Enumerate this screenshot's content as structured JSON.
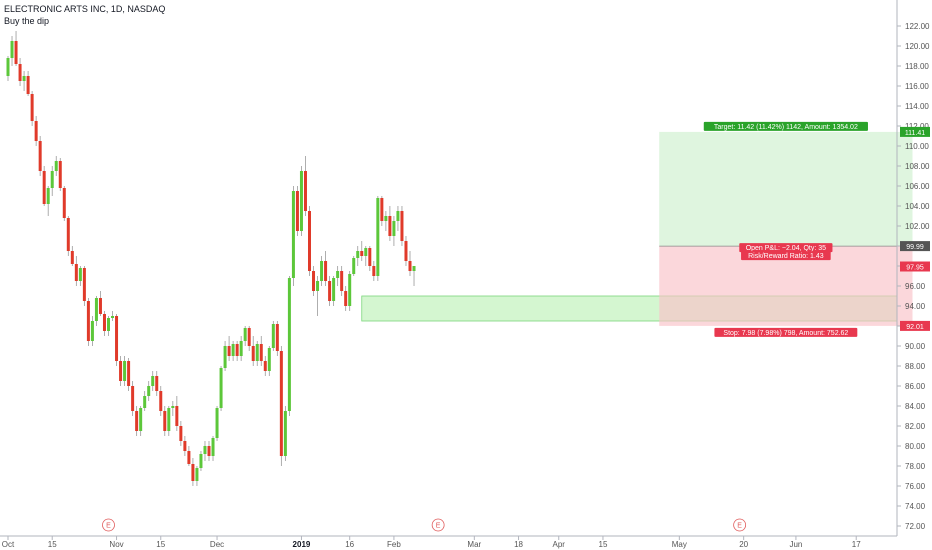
{
  "header": {
    "title": "ELECTRONIC ARTS INC, 1D, NASDAQ",
    "subtitle": "Buy the dip"
  },
  "chart_data": {
    "type": "candlestick",
    "ylim": [
      71,
      123
    ],
    "y_ticks": [
      72,
      74,
      76,
      78,
      80,
      82,
      84,
      86,
      88,
      90,
      92,
      94,
      96,
      98,
      100,
      102,
      104,
      106,
      108,
      110,
      112,
      114,
      116,
      118,
      120,
      122
    ],
    "y_tick_labels": [
      "72.00",
      "74.00",
      "76.00",
      "78.00",
      "80.00",
      "82.00",
      "84.00",
      "86.00",
      "88.00",
      "90.00",
      "92.00",
      "94.00",
      "96.00",
      "98.00",
      "100.00",
      "102.00",
      "104.00",
      "106.00",
      "108.00",
      "110.00",
      "112.00",
      "114.00",
      "116.00",
      "118.00",
      "120.00",
      "122.00"
    ],
    "x_ticks": [
      {
        "label": "Oct",
        "bold": false
      },
      {
        "label": "15",
        "bold": false
      },
      {
        "label": "Nov",
        "bold": false
      },
      {
        "label": "15",
        "bold": false
      },
      {
        "label": "Dec",
        "bold": false
      },
      {
        "label": "2019",
        "bold": true
      },
      {
        "label": "16",
        "bold": false
      },
      {
        "label": "Feb",
        "bold": false
      },
      {
        "label": "Mar",
        "bold": false
      },
      {
        "label": "18",
        "bold": false
      },
      {
        "label": "Apr",
        "bold": false
      },
      {
        "label": "15",
        "bold": false
      },
      {
        "label": "May",
        "bold": false
      },
      {
        "label": "20",
        "bold": false
      },
      {
        "label": "Jun",
        "bold": false
      },
      {
        "label": "17",
        "bold": false
      }
    ],
    "x_tick_index": [
      0,
      11,
      27,
      38,
      52,
      73,
      85,
      96,
      116,
      127,
      137,
      148,
      167,
      183,
      196,
      211
    ],
    "colors": {
      "up": "#5cc73a",
      "down": "#e03a2a",
      "target": "#2aa32a",
      "stop": "#e8384f",
      "price": "#e8384f",
      "last": "#555555",
      "zone": "#b8f0b0"
    },
    "candles": [
      [
        117,
        119,
        116.5,
        118.8
      ],
      [
        118.8,
        121,
        118,
        120.5
      ],
      [
        120.5,
        121.5,
        118,
        118.2
      ],
      [
        118.2,
        118.8,
        116,
        116.5
      ],
      [
        116.5,
        117.5,
        115.5,
        117
      ],
      [
        117,
        117.5,
        115,
        115.2
      ],
      [
        115.2,
        115.5,
        112,
        112.5
      ],
      [
        112.5,
        113,
        110,
        110.5
      ],
      [
        110.5,
        111,
        107,
        107.5
      ],
      [
        107.5,
        108,
        104,
        104.2
      ],
      [
        104.2,
        106,
        103,
        105.8
      ],
      [
        105.8,
        108,
        105,
        107.5
      ],
      [
        107.5,
        109,
        107,
        108.5
      ],
      [
        108.5,
        108.8,
        105.5,
        105.8
      ],
      [
        105.8,
        106,
        102.5,
        102.8
      ],
      [
        102.8,
        103,
        99,
        99.5
      ],
      [
        99.5,
        100,
        98,
        98.2
      ],
      [
        98.2,
        99,
        96,
        96.5
      ],
      [
        96.5,
        98,
        96,
        97.8
      ],
      [
        97.8,
        98,
        94,
        94.5
      ],
      [
        94.5,
        94.8,
        90,
        90.5
      ],
      [
        90.5,
        93,
        90,
        92.5
      ],
      [
        92.5,
        95,
        92,
        94.8
      ],
      [
        94.8,
        95.5,
        93,
        93.2
      ],
      [
        93.2,
        93.5,
        91,
        91.5
      ],
      [
        91.5,
        93,
        91,
        92.8
      ],
      [
        92.8,
        93.5,
        92.5,
        93
      ],
      [
        93,
        93.2,
        88,
        88.5
      ],
      [
        88.5,
        89,
        86,
        86.5
      ],
      [
        86.5,
        89,
        86,
        88.5
      ],
      [
        88.5,
        88.8,
        85.5,
        86
      ],
      [
        86,
        86.5,
        83,
        83.5
      ],
      [
        83.5,
        84,
        81,
        81.5
      ],
      [
        81.5,
        84,
        81,
        83.8
      ],
      [
        83.8,
        85.5,
        83.5,
        85
      ],
      [
        85,
        86.5,
        84.5,
        86
      ],
      [
        86,
        87.5,
        85.5,
        87
      ],
      [
        87,
        87.5,
        85,
        85.5
      ],
      [
        85.5,
        86,
        83,
        83.5
      ],
      [
        83.5,
        84,
        81,
        81.5
      ],
      [
        81.5,
        84,
        81,
        83.8
      ],
      [
        83.8,
        84.5,
        83,
        84
      ],
      [
        84,
        85,
        81.5,
        82
      ],
      [
        82,
        82.5,
        80,
        80.5
      ],
      [
        80.5,
        81,
        79,
        79.5
      ],
      [
        79.5,
        80,
        78,
        78.2
      ],
      [
        78.2,
        78.8,
        76,
        76.5
      ],
      [
        76.5,
        78,
        76,
        77.8
      ],
      [
        77.8,
        79.5,
        77.5,
        79.2
      ],
      [
        79.2,
        80.5,
        78.5,
        80
      ],
      [
        80,
        80.5,
        78.5,
        79
      ],
      [
        79,
        81,
        78.5,
        80.8
      ],
      [
        80.8,
        84,
        80.5,
        83.8
      ],
      [
        83.8,
        88,
        83.5,
        87.8
      ],
      [
        87.8,
        90.5,
        87.5,
        90
      ],
      [
        90,
        91,
        88.5,
        89
      ],
      [
        89,
        90.5,
        88.5,
        90.2
      ],
      [
        90.2,
        90.5,
        88.5,
        89
      ],
      [
        89,
        91,
        88.5,
        90.5
      ],
      [
        90.5,
        92,
        90,
        91.8
      ],
      [
        91.8,
        92,
        89.5,
        90
      ],
      [
        90,
        91,
        88,
        88.5
      ],
      [
        88.5,
        90.5,
        88,
        90.2
      ],
      [
        90.2,
        91,
        88,
        88.5
      ],
      [
        88.5,
        89,
        87,
        87.5
      ],
      [
        87.5,
        90,
        87,
        89.8
      ],
      [
        89.8,
        92.5,
        89.5,
        92.2
      ],
      [
        92.2,
        92.5,
        89,
        89.5
      ],
      [
        89.5,
        90,
        78,
        79
      ],
      [
        79,
        84,
        78.5,
        83.5
      ],
      [
        83.5,
        97,
        83,
        96.8
      ],
      [
        96.8,
        106,
        96,
        105.5
      ],
      [
        105.5,
        106,
        101,
        101.5
      ],
      [
        101.5,
        108,
        101,
        107.5
      ],
      [
        107.5,
        109,
        103,
        103.5
      ],
      [
        103.5,
        104,
        97,
        97.5
      ],
      [
        97.5,
        98,
        95,
        95.5
      ],
      [
        95.5,
        97,
        93,
        96.5
      ],
      [
        96.5,
        99,
        96,
        98.5
      ],
      [
        98.5,
        99.5,
        96,
        96.5
      ],
      [
        96.5,
        97,
        94,
        94.5
      ],
      [
        94.5,
        97,
        94,
        96.8
      ],
      [
        96.8,
        98,
        96,
        97.5
      ],
      [
        97.5,
        98,
        95,
        95.5
      ],
      [
        95.5,
        96,
        93.5,
        94
      ],
      [
        94,
        97.5,
        93.5,
        97.2
      ],
      [
        97.2,
        99,
        97,
        98.8
      ],
      [
        98.8,
        100,
        98,
        99.5
      ],
      [
        99.5,
        100.5,
        98.5,
        99
      ],
      [
        99,
        100,
        98,
        99.8
      ],
      [
        99.8,
        100,
        97.5,
        98
      ],
      [
        98,
        98.5,
        96.5,
        97
      ],
      [
        97,
        105,
        96.5,
        104.8
      ],
      [
        104.8,
        105,
        102,
        102.5
      ],
      [
        102.5,
        103.5,
        101.5,
        103
      ],
      [
        103,
        104,
        100.5,
        101
      ],
      [
        101,
        103,
        100,
        102.5
      ],
      [
        102.5,
        104,
        101.5,
        103.5
      ],
      [
        103.5,
        104,
        100,
        100.5
      ],
      [
        100.5,
        101,
        98,
        98.5
      ],
      [
        98.5,
        99.5,
        97,
        97.5
      ],
      [
        97.5,
        98,
        96,
        98
      ]
    ],
    "zone": {
      "y_low": 92.5,
      "y_high": 95,
      "i_start": 88,
      "i_end": 228
    },
    "position": {
      "i_start": 162,
      "i_end": 225,
      "entry": 99.99,
      "target": 111.41,
      "stop": 92.01
    },
    "price_labels": [
      {
        "value": 111.41,
        "text": "111.41",
        "kind": "target"
      },
      {
        "value": 99.99,
        "text": "99.99",
        "kind": "last"
      },
      {
        "value": 97.95,
        "text": "97.95",
        "kind": "price"
      },
      {
        "value": 92.01,
        "text": "92.01",
        "kind": "stop"
      }
    ],
    "annotations": {
      "target": "Target: 11.42 (11.42%) 1142, Amount: 1354.02",
      "open_pnl": "Open P&L: −2.04, Qty: 35",
      "risk_reward": "Risk/Reward Ratio: 1.43",
      "stop": "Stop: 7.98 (7.98%) 798, Amount: 752.62"
    },
    "earnings_marker": "E",
    "earnings_index": [
      25,
      107,
      182
    ]
  }
}
